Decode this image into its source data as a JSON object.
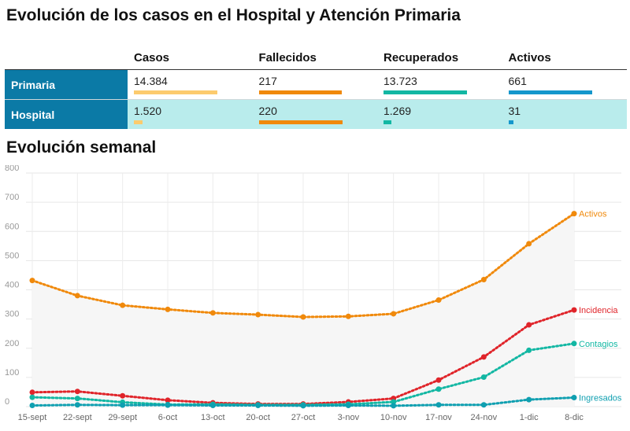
{
  "title": "Evolución de los casos en el Hospital y Atención Primaria",
  "subtitle": "Evolución semanal",
  "table": {
    "headers": [
      "Casos",
      "Fallecidos",
      "Recuperados",
      "Activos"
    ],
    "colors": [
      "#fccb6e",
      "#f0890b",
      "#12b7a3",
      "#1497cc"
    ],
    "rows": [
      {
        "label": "Primaria",
        "values": [
          "14.384",
          "217",
          "13.723",
          "661"
        ],
        "fractions": [
          1.0,
          0.99,
          1.0,
          1.0
        ]
      },
      {
        "label": "Hospital",
        "values": [
          "1.520",
          "220",
          "1.269",
          "31"
        ],
        "fractions": [
          0.105,
          1.0,
          0.09,
          0.047
        ]
      }
    ]
  },
  "chart_data": {
    "type": "line",
    "categories": [
      "15-sept",
      "22-sept",
      "29-sept",
      "6-oct",
      "13-oct",
      "20-oct",
      "27-oct",
      "3-nov",
      "10-nov",
      "17-nov",
      "24-nov",
      "1-dic",
      "8-dic"
    ],
    "ylim": [
      0,
      800
    ],
    "yticks": [
      0,
      100,
      200,
      300,
      400,
      500,
      600,
      700,
      800
    ],
    "grid": true,
    "series": [
      {
        "name": "Activos",
        "color": "#f0890b",
        "values": [
          432,
          380,
          347,
          333,
          321,
          315,
          307,
          309,
          318,
          365,
          435,
          558,
          661
        ]
      },
      {
        "name": "Incidencia",
        "color": "#e0242a",
        "values": [
          49,
          52,
          37,
          22,
          13,
          9,
          9,
          16,
          28,
          91,
          170,
          280,
          331
        ]
      },
      {
        "name": "Contagios",
        "color": "#12b7a3",
        "values": [
          32,
          28,
          15,
          7,
          8,
          6,
          6,
          8,
          16,
          60,
          101,
          193,
          216
        ]
      },
      {
        "name": "Ingresados",
        "color": "#0f9fb0",
        "values": [
          4,
          6,
          5,
          5,
          4,
          4,
          3,
          4,
          3,
          6,
          6,
          24,
          31
        ]
      }
    ]
  }
}
